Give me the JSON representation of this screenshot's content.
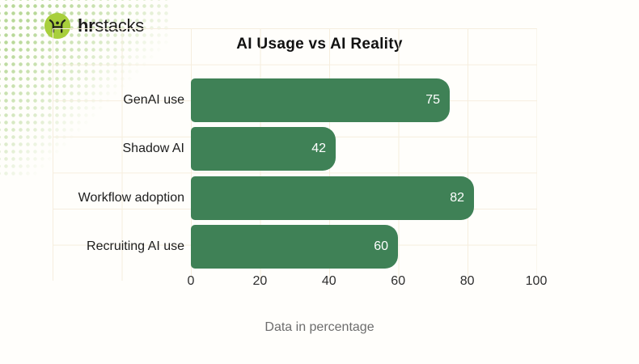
{
  "brand": {
    "name_bold": "hr",
    "name_regular": "stacks",
    "icon": "hrstacks-logo-icon"
  },
  "chart_data": {
    "type": "bar",
    "orientation": "horizontal",
    "title": "AI Usage vs AI Reality",
    "categories": [
      "GenAI use",
      "Shadow AI",
      "Workflow adoption",
      "Recruiting AI use"
    ],
    "values": [
      75,
      42,
      82,
      60
    ],
    "xlabel": "Data in percentage",
    "ylabel": "",
    "xlim": [
      0,
      100
    ],
    "x_ticks": [
      0,
      20,
      40,
      60,
      80,
      100
    ],
    "grid": true,
    "legend": false,
    "value_labels": "inside-end",
    "colors": {
      "bar": "#3f8156",
      "value_label": "#ffffff",
      "grid_line": "#f6eede",
      "title": "#111111",
      "category_label": "#1d1d1d",
      "tick_label": "#2e2e2e",
      "caption": "#6d6d6d",
      "logo_circle": "#a8cf3c",
      "logo_glyph": "#23251c",
      "dots": "#b8d898"
    }
  }
}
